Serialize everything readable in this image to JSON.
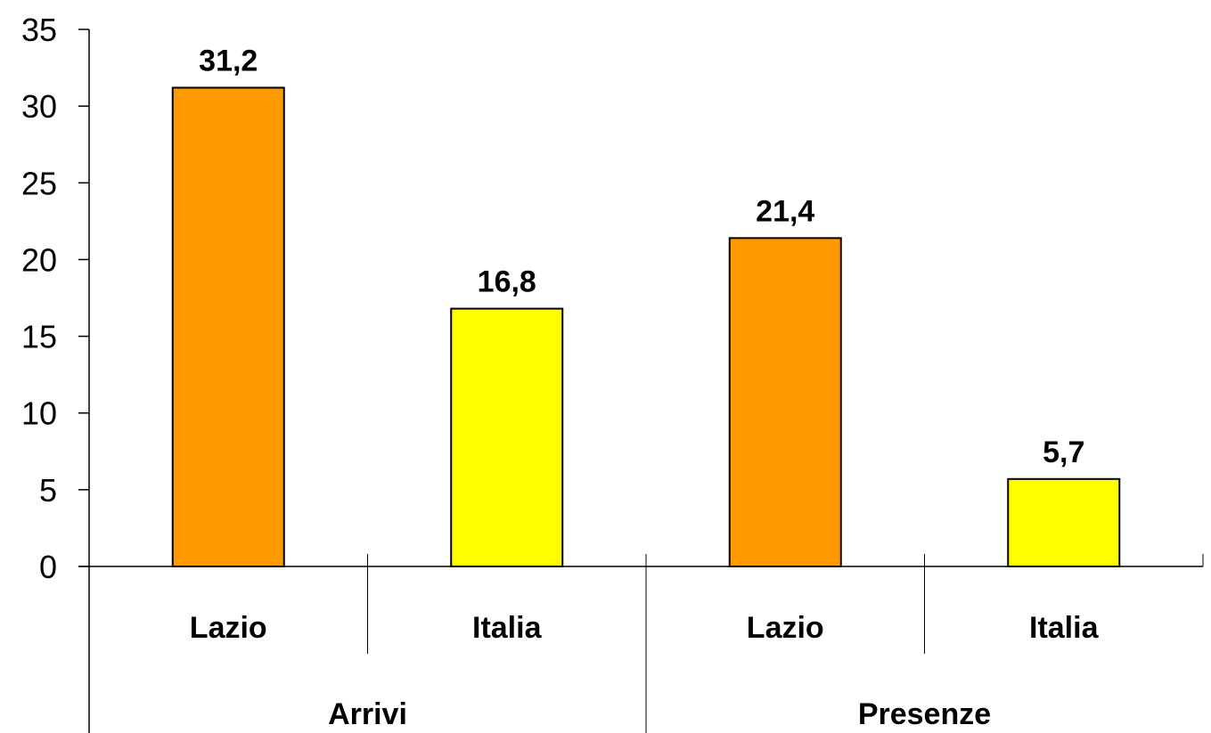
{
  "chart_data": {
    "type": "bar",
    "groups": [
      {
        "label": "Arrivi",
        "categories": [
          "Lazio",
          "Italia"
        ],
        "values": [
          31.2,
          16.8
        ],
        "value_labels": [
          "31,2",
          "16,8"
        ]
      },
      {
        "label": "Presenze",
        "categories": [
          "Lazio",
          "Italia"
        ],
        "values": [
          21.4,
          5.7
        ],
        "value_labels": [
          "21,4",
          "5,7"
        ]
      }
    ],
    "yticks": [
      "0",
      "5",
      "10",
      "15",
      "20",
      "25",
      "30",
      "35"
    ],
    "ylim": [
      0,
      35
    ],
    "grid": false,
    "bar_colors": {
      "Lazio": "#FF9900",
      "Italia": "#FFFF00"
    }
  }
}
